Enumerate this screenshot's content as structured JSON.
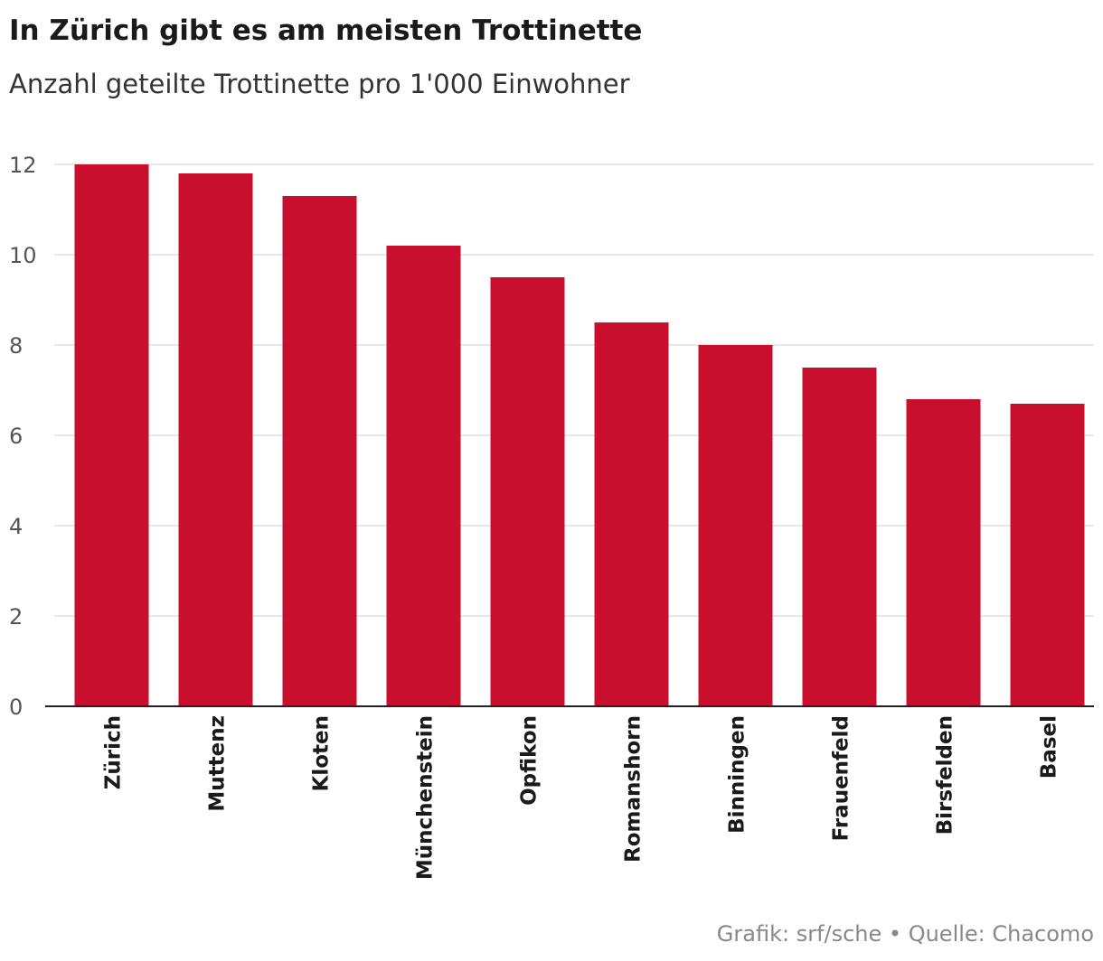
{
  "title": "In Zürich gibt es am meisten Trottinette",
  "subtitle": "Anzahl geteilte Trottinette pro 1'000 Einwohner",
  "source": "Grafik: srf/sche • Quelle: Chacomo",
  "colors": {
    "bar": "#c8102e",
    "grid": "#e0e0e0",
    "axis": "#222222",
    "tick_text": "#555555"
  },
  "chart_data": {
    "type": "bar",
    "title": "In Zürich gibt es am meisten Trottinette",
    "subtitle": "Anzahl geteilte Trottinette pro 1'000 Einwohner",
    "categories": [
      "Zürich",
      "Muttenz",
      "Kloten",
      "Münchenstein",
      "Opfikon",
      "Romanshorn",
      "Binningen",
      "Frauenfeld",
      "Birsfelden",
      "Basel"
    ],
    "values": [
      12.0,
      11.8,
      11.3,
      10.2,
      9.5,
      8.5,
      8.0,
      7.5,
      6.8,
      6.7
    ],
    "ylim": [
      0,
      12
    ],
    "yticks": [
      0,
      2,
      4,
      6,
      8,
      10,
      12
    ],
    "grid": true
  }
}
